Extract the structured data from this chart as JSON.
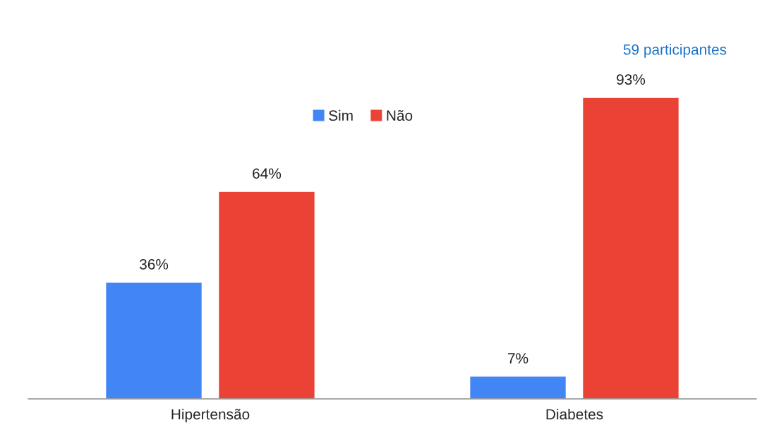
{
  "chart_data": {
    "type": "bar",
    "categories": [
      "Hipertensão",
      "Diabetes"
    ],
    "series": [
      {
        "name": "Sim",
        "color": "#4285f4",
        "values": [
          36,
          7
        ],
        "value_labels": [
          "36%",
          "7%"
        ]
      },
      {
        "name": "Não",
        "color": "#ea4335",
        "values": [
          64,
          93
        ],
        "value_labels": [
          "64%",
          "93%"
        ]
      }
    ],
    "legend": "top",
    "annotations": [
      "59 participantes"
    ]
  }
}
